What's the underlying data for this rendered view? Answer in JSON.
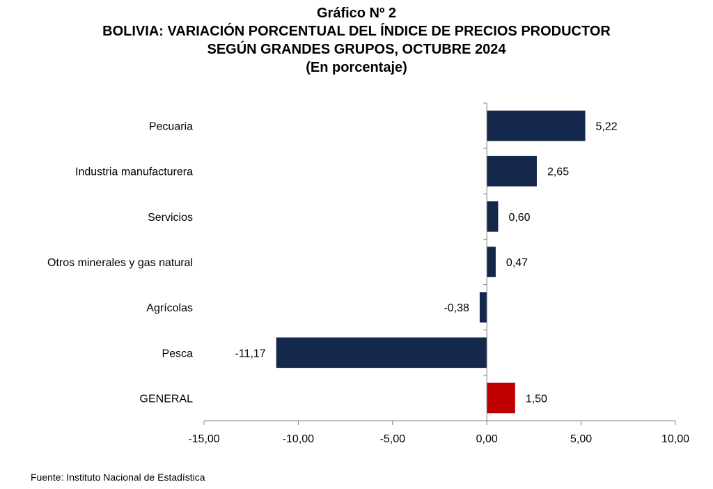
{
  "figure": {
    "number": "Gráfico Nº 2",
    "title_line1": "BOLIVIA: VARIACIÓN PORCENTUAL DEL ÍNDICE DE PRECIOS PRODUCTOR",
    "title_line2": "SEGÚN GRANDES GRUPOS, OCTUBRE 2024",
    "unit": "(En porcentaje)"
  },
  "source": "Fuente: Instituto Nacional de Estadística",
  "chart_data": {
    "type": "bar",
    "orientation": "horizontal",
    "categories": [
      "Pecuaria",
      "Industria manufacturera",
      "Servicios",
      "Otros minerales y gas natural",
      "Agrícolas",
      "Pesca",
      "GENERAL"
    ],
    "values": [
      5.22,
      2.65,
      0.6,
      0.47,
      -0.38,
      -11.17,
      1.5
    ],
    "value_labels": [
      "5,22",
      "2,65",
      "0,60",
      "0,47",
      "-0,38",
      "-11,17",
      "1,50"
    ],
    "xlim": [
      -15,
      10
    ],
    "xticks": [
      -15,
      -10,
      -5,
      0,
      5,
      10
    ],
    "xtick_labels": [
      "-15,00",
      "-10,00",
      "-5,00",
      "0,00",
      "5,00",
      "10,00"
    ],
    "colors": {
      "bar": "#14284b",
      "highlight": "#c00000",
      "highlight_category": "GENERAL"
    },
    "grid": false,
    "legend": "none"
  }
}
